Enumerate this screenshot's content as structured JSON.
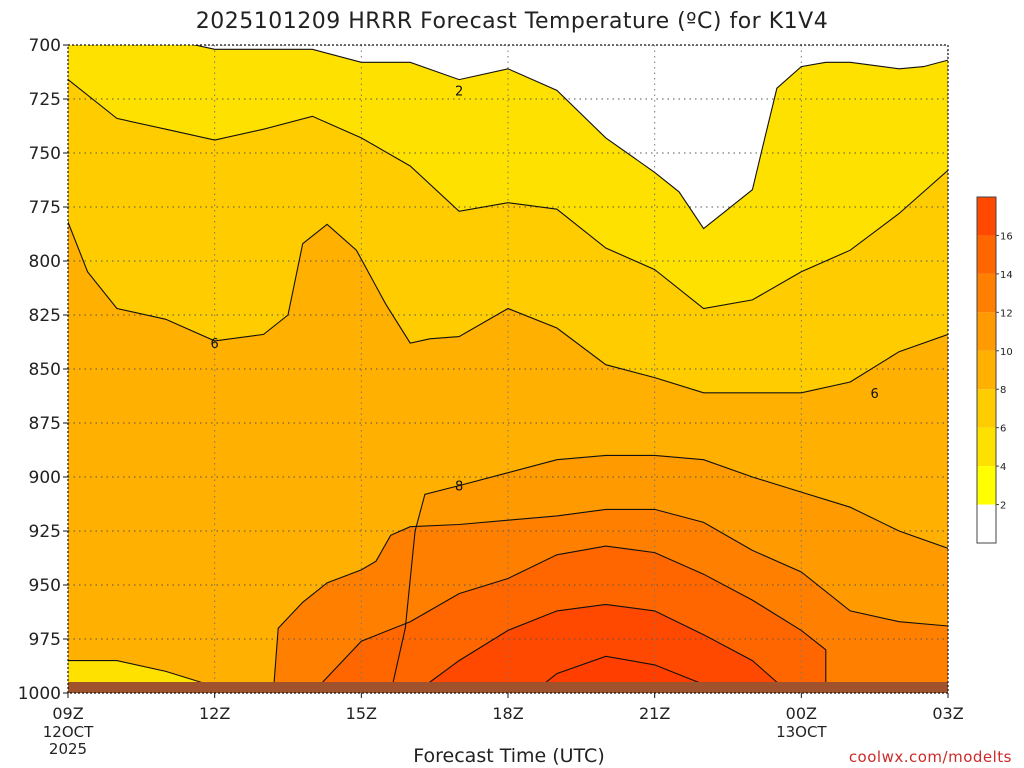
{
  "chart_data": {
    "type": "contour",
    "title": "2025101209 HRRR Forecast Temperature (ºC) for K1V4",
    "xlabel": "Forecast Time (UTC)",
    "ylabel": "",
    "credit": "coolwx.com/modelts",
    "y_axis": {
      "quantity": "pressure (hPa)",
      "inverted": true,
      "range": [
        1000,
        700
      ],
      "ticks": [
        700,
        725,
        750,
        775,
        800,
        825,
        850,
        875,
        900,
        925,
        950,
        975,
        1000
      ]
    },
    "x_axis": {
      "range": [
        9,
        27
      ],
      "ticks": [
        {
          "hour": 9,
          "label": "09Z",
          "date_lines": [
            "12OCT",
            "2025"
          ]
        },
        {
          "hour": 12,
          "label": "12Z",
          "date_lines": []
        },
        {
          "hour": 15,
          "label": "15Z",
          "date_lines": []
        },
        {
          "hour": 18,
          "label": "18Z",
          "date_lines": []
        },
        {
          "hour": 21,
          "label": "21Z",
          "date_lines": []
        },
        {
          "hour": 24,
          "label": "00Z",
          "date_lines": [
            "13OCT"
          ]
        },
        {
          "hour": 27,
          "label": "03Z",
          "date_lines": []
        }
      ]
    },
    "grid": "dotted",
    "legend": "colorbar right",
    "colorbar": {
      "levels": [
        2,
        4,
        6,
        8,
        10,
        12,
        14,
        16
      ],
      "labels": [
        "2",
        "4",
        "6",
        "8",
        "10",
        "12",
        "14",
        "16"
      ],
      "colors": [
        "#ffffff",
        "#ffff00",
        "#ffe100",
        "#ffcc00",
        "#ffb000",
        "#ff9a00",
        "#ff8000",
        "#ff6600",
        "#ff4800"
      ]
    },
    "surface_color": "#a0522d",
    "contours": [
      {
        "level": 2,
        "label": "2",
        "label_at": [
          17,
          721
        ],
        "points": [
          [
            9,
            696
          ],
          [
            10,
            696
          ],
          [
            11,
            697
          ],
          [
            12,
            702
          ],
          [
            13,
            702
          ],
          [
            14,
            702
          ],
          [
            15,
            708
          ],
          [
            16,
            708
          ],
          [
            17,
            716
          ],
          [
            18,
            711
          ],
          [
            19,
            721
          ],
          [
            20,
            743
          ],
          [
            21,
            759
          ],
          [
            21.5,
            768
          ],
          [
            22,
            785
          ],
          [
            22.5,
            776
          ],
          [
            23,
            767
          ],
          [
            23.2,
            748
          ],
          [
            23.5,
            720
          ],
          [
            24,
            710
          ],
          [
            24.5,
            708
          ],
          [
            25,
            708
          ],
          [
            26,
            711
          ],
          [
            26.5,
            710
          ],
          [
            27,
            707
          ]
        ]
      },
      {
        "level": 3,
        "label": "",
        "label_at": [],
        "points": [
          [
            9,
            716
          ],
          [
            10,
            734
          ],
          [
            11,
            739
          ],
          [
            12,
            744
          ],
          [
            13,
            739
          ],
          [
            14,
            733
          ],
          [
            15,
            743
          ],
          [
            16,
            756
          ],
          [
            17,
            777
          ],
          [
            18,
            773
          ],
          [
            19,
            776
          ],
          [
            20,
            794
          ],
          [
            21,
            804
          ],
          [
            22,
            822
          ],
          [
            23,
            818
          ],
          [
            24,
            805
          ],
          [
            25,
            795
          ],
          [
            26,
            778
          ],
          [
            27,
            758
          ]
        ]
      },
      {
        "level": 6,
        "label": "6",
        "label_at": [
          [
            12,
            838
          ],
          [
            25.5,
            861
          ]
        ],
        "points": [
          [
            9,
            782
          ],
          [
            9.4,
            805
          ],
          [
            10,
            822
          ],
          [
            11,
            827
          ],
          [
            12,
            837
          ],
          [
            13,
            834
          ],
          [
            13.5,
            825
          ],
          [
            13.8,
            792
          ],
          [
            14.3,
            783
          ],
          [
            14.9,
            795
          ],
          [
            15.5,
            820
          ],
          [
            16,
            838
          ],
          [
            16.4,
            836
          ],
          [
            17,
            835
          ],
          [
            18,
            822
          ],
          [
            19,
            831
          ],
          [
            20,
            848
          ],
          [
            21,
            854
          ],
          [
            22,
            861
          ],
          [
            23,
            861
          ],
          [
            24,
            861
          ],
          [
            25,
            856
          ],
          [
            26,
            842
          ],
          [
            27,
            834
          ]
        ]
      },
      {
        "level": 8,
        "label": "8",
        "label_at": [
          17,
          904
        ],
        "points": [
          [
            15.6,
            1000
          ],
          [
            15.9,
            970
          ],
          [
            16.1,
            925
          ],
          [
            16.3,
            908
          ],
          [
            17,
            904
          ],
          [
            18,
            898
          ],
          [
            19,
            892
          ],
          [
            20,
            890
          ],
          [
            21,
            890
          ],
          [
            22,
            892
          ],
          [
            23,
            900
          ],
          [
            24,
            907
          ],
          [
            25,
            914
          ],
          [
            26,
            925
          ],
          [
            27,
            933
          ]
        ]
      },
      {
        "level": 10,
        "label": "",
        "label_at": [],
        "points": [
          [
            13.2,
            1000
          ],
          [
            13.3,
            970
          ],
          [
            13.8,
            958
          ],
          [
            14.3,
            949
          ],
          [
            15,
            943
          ],
          [
            15.3,
            939
          ],
          [
            15.6,
            927
          ],
          [
            16,
            923
          ],
          [
            17,
            922
          ],
          [
            18,
            920
          ],
          [
            19,
            918
          ],
          [
            20,
            915
          ],
          [
            21,
            915
          ],
          [
            22,
            921
          ],
          [
            23,
            934
          ],
          [
            24,
            944
          ],
          [
            25,
            962
          ],
          [
            26,
            967
          ],
          [
            27,
            969
          ]
        ]
      },
      {
        "level": 12,
        "label": "",
        "label_at": [],
        "points": [
          [
            14,
            1000
          ],
          [
            15,
            976
          ],
          [
            16,
            967
          ],
          [
            17,
            954
          ],
          [
            18,
            947
          ],
          [
            19,
            936
          ],
          [
            20,
            932
          ],
          [
            21,
            935
          ],
          [
            22,
            945
          ],
          [
            23,
            957
          ],
          [
            24,
            971
          ],
          [
            24.5,
            980
          ],
          [
            24.5,
            1000
          ]
        ]
      },
      {
        "level": 14,
        "label": "",
        "label_at": [],
        "points": [
          [
            16.1,
            1000
          ],
          [
            17,
            985
          ],
          [
            18,
            971
          ],
          [
            19,
            962
          ],
          [
            20,
            959
          ],
          [
            21,
            962
          ],
          [
            22,
            973
          ],
          [
            23,
            985
          ],
          [
            23.5,
            995
          ],
          [
            23.5,
            1000
          ]
        ]
      },
      {
        "level": 16,
        "label": "",
        "label_at": [],
        "points": [
          [
            18.5,
            1000
          ],
          [
            19,
            991
          ],
          [
            20,
            983
          ],
          [
            21,
            987
          ],
          [
            22,
            996
          ],
          [
            22,
            1000
          ]
        ]
      }
    ],
    "low_level_cool_layer": {
      "level": 3,
      "points": [
        [
          9,
          1000
        ],
        [
          9,
          985
        ],
        [
          10,
          985
        ],
        [
          11,
          990
        ],
        [
          12,
          997
        ],
        [
          12.5,
          1000
        ]
      ]
    }
  }
}
